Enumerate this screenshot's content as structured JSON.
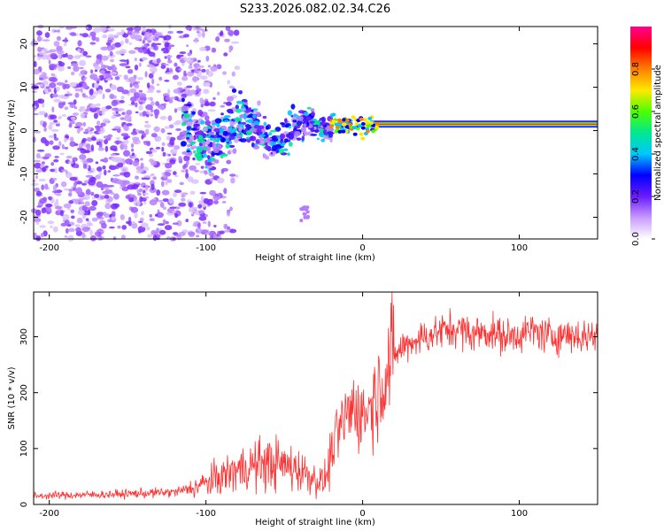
{
  "title": "S233.2026.082.02.34.C26",
  "chart_data": [
    {
      "type": "heatmap",
      "xlabel": "Height of straight line (km)",
      "ylabel": "Frequency (Hz)",
      "xlim": [
        -210,
        150
      ],
      "ylim": [
        -25,
        24
      ],
      "x_ticks": [
        -200,
        -100,
        0,
        100
      ],
      "y_ticks": [
        -20,
        -10,
        0,
        10,
        20
      ],
      "colorbar": {
        "label": "Normalized spectral amplitude",
        "range": [
          0,
          1
        ],
        "ticks": [
          0.0,
          0.2,
          0.4,
          0.6,
          0.8
        ],
        "colors": [
          "#ffffff",
          "#c89bff",
          "#6b1bff",
          "#0000ff",
          "#00c8ff",
          "#00e890",
          "#4cff00",
          "#ffe800",
          "#ff8000",
          "#ff0000",
          "#ff0090"
        ]
      },
      "features": [
        {
          "name": "noise",
          "x_range": [
            -210,
            -95
          ],
          "freq_range": [
            -25,
            24
          ],
          "amplitude": 0.1
        },
        {
          "name": "scatter",
          "x_range": [
            -115,
            -20
          ],
          "freq_center": 0,
          "amplitude": 0.35
        },
        {
          "name": "line",
          "x_range": [
            -20,
            150
          ],
          "freq_center": 1.5,
          "amplitude": 0.9
        }
      ]
    },
    {
      "type": "line",
      "xlabel": "Height of straight line (km)",
      "ylabel": "SNR (10 * v/v)",
      "xlim": [
        -210,
        150
      ],
      "ylim": [
        0,
        380
      ],
      "x_ticks": [
        -200,
        -100,
        0,
        100
      ],
      "y_ticks": [
        0,
        100,
        200,
        300
      ],
      "series": [
        {
          "name": "SNR",
          "color": "#ff3030",
          "x": [
            -210,
            -200,
            -180,
            -160,
            -140,
            -120,
            -110,
            -100,
            -90,
            -80,
            -70,
            -60,
            -50,
            -40,
            -35,
            -30,
            -25,
            -22,
            -20,
            -15,
            -10,
            -5,
            0,
            5,
            10,
            15,
            20,
            25,
            30,
            40,
            50,
            60,
            70,
            80,
            90,
            100,
            110,
            120,
            130,
            140,
            150
          ],
          "values": [
            15,
            16,
            17,
            18,
            20,
            22,
            28,
            38,
            50,
            62,
            70,
            74,
            70,
            62,
            55,
            45,
            40,
            60,
            95,
            130,
            160,
            175,
            160,
            175,
            205,
            240,
            265,
            280,
            290,
            300,
            310,
            315,
            305,
            310,
            300,
            305,
            310,
            300,
            305,
            300,
            305
          ]
        }
      ]
    }
  ]
}
